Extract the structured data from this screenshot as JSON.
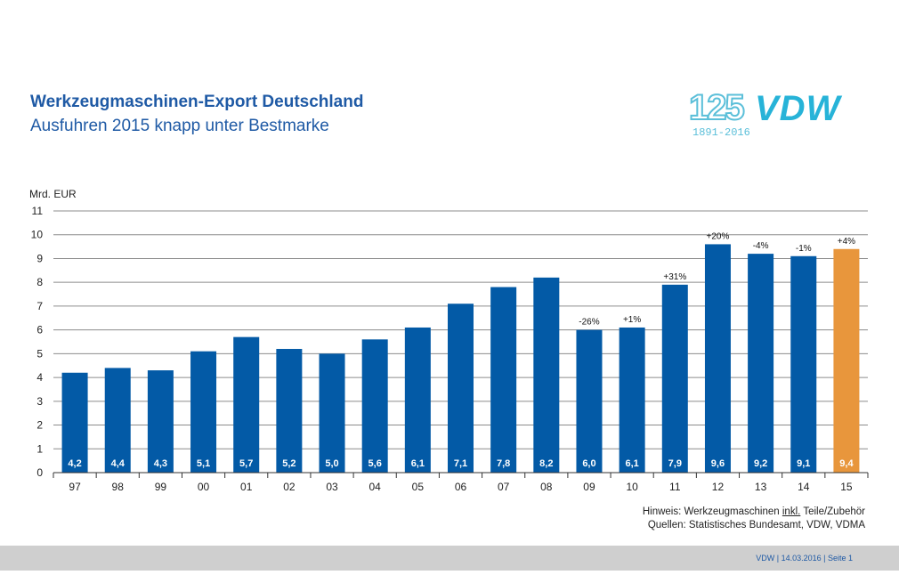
{
  "header": {
    "title": "Werkzeugmaschinen-Export Deutschland",
    "subtitle": "Ausfuhren 2015 knapp unter Bestmarke"
  },
  "logo": {
    "number": "125",
    "brand": "VDW",
    "years": "1891-2016"
  },
  "notes": {
    "hint_prefix": "Hinweis: Werkzeugmaschinen ",
    "hint_underlined": "inkl.",
    "hint_suffix": " Teile/Zubehör",
    "sources": "Quellen: Statistisches Bundesamt, VDW, VDMA"
  },
  "footer": {
    "text": "VDW |   14.03.2016   | Seite  1"
  },
  "colors": {
    "bar": "#035aa6",
    "highlight": "#e8963c",
    "title": "#1f5aa5"
  },
  "chart_data": {
    "type": "bar",
    "ylabel": "Mrd. EUR",
    "ylim": [
      0,
      11
    ],
    "yticks": [
      0,
      1,
      2,
      3,
      4,
      5,
      6,
      7,
      8,
      9,
      10,
      11
    ],
    "grid": true,
    "categories": [
      "97",
      "98",
      "99",
      "00",
      "01",
      "02",
      "03",
      "04",
      "05",
      "06",
      "07",
      "08",
      "09",
      "10",
      "11",
      "12",
      "13",
      "14",
      "15"
    ],
    "values": [
      4.2,
      4.4,
      4.3,
      5.1,
      5.7,
      5.2,
      5.0,
      5.6,
      6.1,
      7.1,
      7.8,
      8.2,
      6.0,
      6.1,
      7.9,
      9.6,
      9.2,
      9.1,
      9.4
    ],
    "value_labels": [
      "4,2",
      "4,4",
      "4,3",
      "5,1",
      "5,7",
      "5,2",
      "5,0",
      "5,6",
      "6,1",
      "7,1",
      "7,8",
      "8,2",
      "6,0",
      "6,1",
      "7,9",
      "9,6",
      "9,2",
      "9,1",
      "9,4"
    ],
    "change_labels": [
      "",
      "",
      "",
      "",
      "",
      "",
      "",
      "",
      "",
      "",
      "",
      "",
      "-26%",
      "+1%",
      "+31%",
      "+20%",
      "-4%",
      "-1%",
      "+4%"
    ],
    "highlight_index": 18
  }
}
